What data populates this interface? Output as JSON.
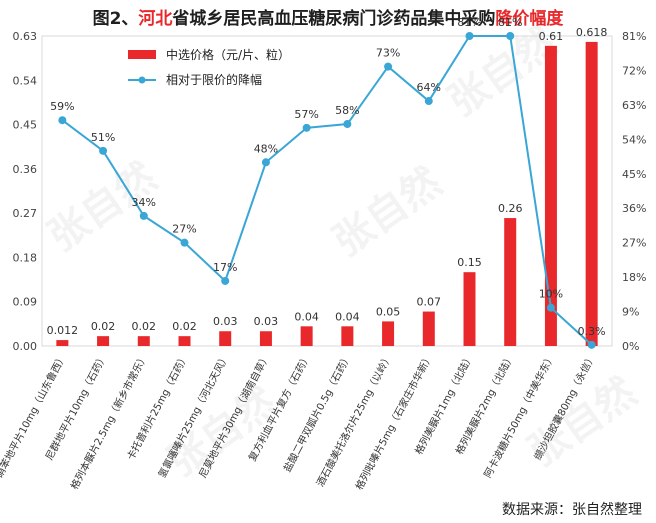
{
  "title": {
    "prefix": "图2、",
    "highlight1": "河北",
    "middle": "省城乡居民高血压糖尿病门诊药品集中采购",
    "highlight2": "降价幅度"
  },
  "source": "数据来源：张自然整理",
  "watermark": "张自然",
  "colors": {
    "bar": "#e8282b",
    "line": "#3aa6d6",
    "highlight": "#e8282b"
  },
  "chart_data": {
    "type": "bar",
    "categories": [
      "硝苯地平片10mg（山东鲁西）",
      "尼群地平片10mg（石药）",
      "格列本脲片2.5mg（新乡市常乐）",
      "卡托普利片25mg（石药）",
      "氢氯噻嗪片25mg（河北天风）",
      "尼莫地平片30mg（湖南自草）",
      "复方利血平片复方（石药）",
      "盐酸二甲双胍片0.5g（石药）",
      "酒石酸美托洛尔片25mg（以岭）",
      "格列吡嗪片5mg（石家庄市华新）",
      "格列美脲片1mg（北陆）",
      "格列美脲片2mg（北陆）",
      "阿卡波糖片50mg（中美华东）",
      "缬沙坦胶囊80mg（永信）"
    ],
    "series": [
      {
        "name": "中选价格（元/片、粒）",
        "type": "bar",
        "axis": "left",
        "values": [
          0.012,
          0.02,
          0.02,
          0.02,
          0.03,
          0.03,
          0.04,
          0.04,
          0.05,
          0.07,
          0.15,
          0.26,
          0.61,
          0.618
        ]
      },
      {
        "name": "相对于限价的降幅",
        "type": "line",
        "axis": "right",
        "values": [
          59,
          51,
          34,
          27,
          17,
          48,
          57,
          58,
          73,
          64,
          81,
          81,
          10,
          0.3
        ]
      }
    ],
    "bar_labels": [
      "0.012",
      "0.02",
      "0.02",
      "0.02",
      "0.03",
      "0.03",
      "0.04",
      "0.04",
      "0.05",
      "0.07",
      "0.15",
      "0.26",
      "0.61",
      "0.618"
    ],
    "line_labels": [
      "59%",
      "51%",
      "34%",
      "27%",
      "17%",
      "48%",
      "57%",
      "58%",
      "73%",
      "64%",
      "81%",
      "81%",
      "10%",
      "0.3%"
    ],
    "left_axis": {
      "ticks": [
        "0.00",
        "0.09",
        "0.18",
        "0.27",
        "0.36",
        "0.45",
        "0.54",
        "0.63"
      ],
      "range": [
        0,
        0.63
      ]
    },
    "right_axis": {
      "ticks": [
        "0%",
        "9%",
        "18%",
        "27%",
        "36%",
        "45%",
        "54%",
        "63%",
        "72%",
        "81%"
      ],
      "range": [
        0,
        81
      ]
    },
    "legend_position": "top-left",
    "grid": false
  }
}
